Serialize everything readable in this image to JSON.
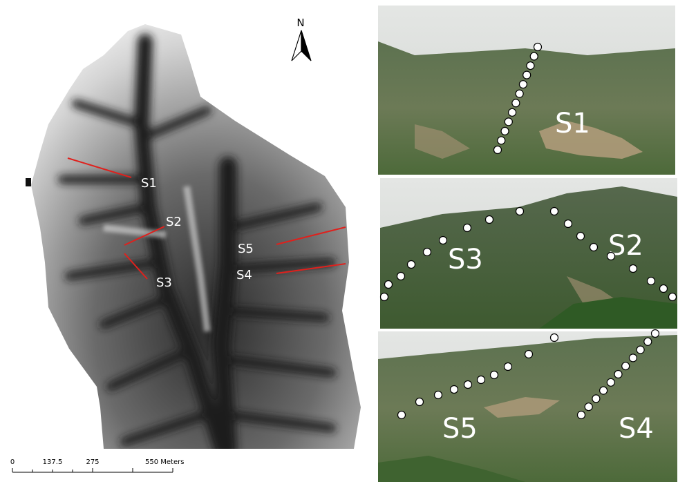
{
  "map": {
    "north": "N",
    "labels": [
      "S1",
      "S2",
      "S3",
      "S5",
      "S4"
    ],
    "scale_bar": [
      "0",
      "137.5",
      "275",
      "550 Meters"
    ]
  },
  "photos": [
    {
      "labels": [
        "S1"
      ]
    },
    {
      "labels": [
        "S3",
        "S2"
      ]
    },
    {
      "labels": [
        "S5",
        "S4"
      ]
    }
  ]
}
